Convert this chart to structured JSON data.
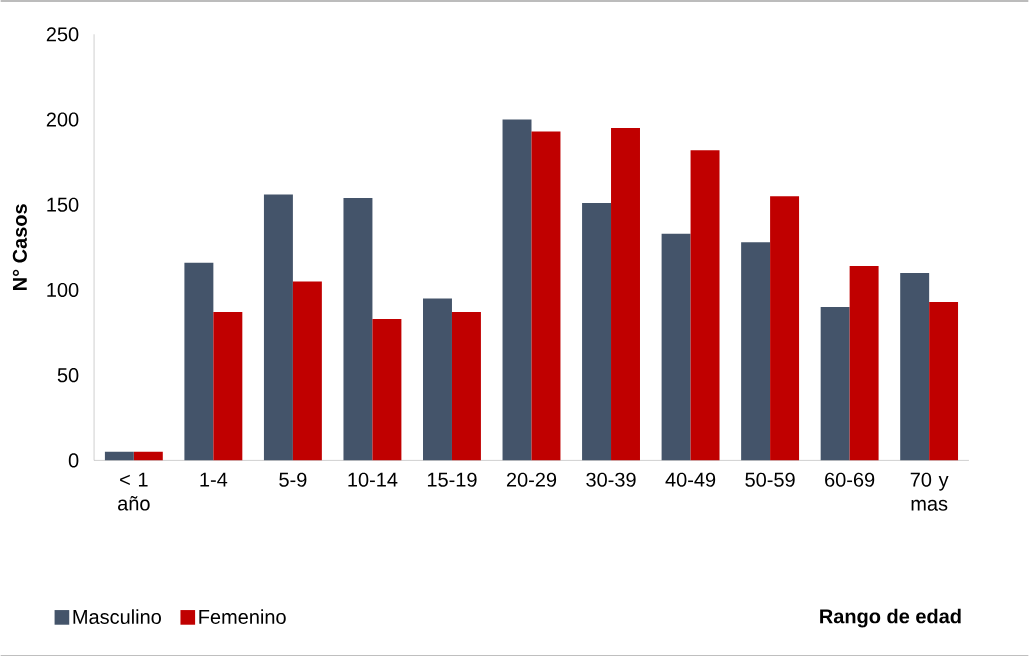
{
  "chart_data": {
    "type": "bar",
    "xlabel": "Rango de edad",
    "ylabel": "N° Casos",
    "categories": [
      "< 1 año",
      "1-4",
      "5-9",
      "10-14",
      "15-19",
      "20-29",
      "30-39",
      "40-49",
      "50-59",
      "60-69",
      "70 y mas"
    ],
    "series": [
      {
        "name": "Masculino",
        "color": "#44546a",
        "values": [
          5,
          116,
          156,
          154,
          95,
          200,
          151,
          133,
          128,
          90,
          110
        ]
      },
      {
        "name": "Femenino",
        "color": "#c00000",
        "values": [
          5,
          87,
          105,
          83,
          87,
          193,
          195,
          182,
          155,
          114,
          93
        ]
      }
    ],
    "ylim": [
      0,
      250
    ],
    "yticks": [
      0,
      50,
      100,
      150,
      200,
      250
    ],
    "legend": "bottom left"
  }
}
